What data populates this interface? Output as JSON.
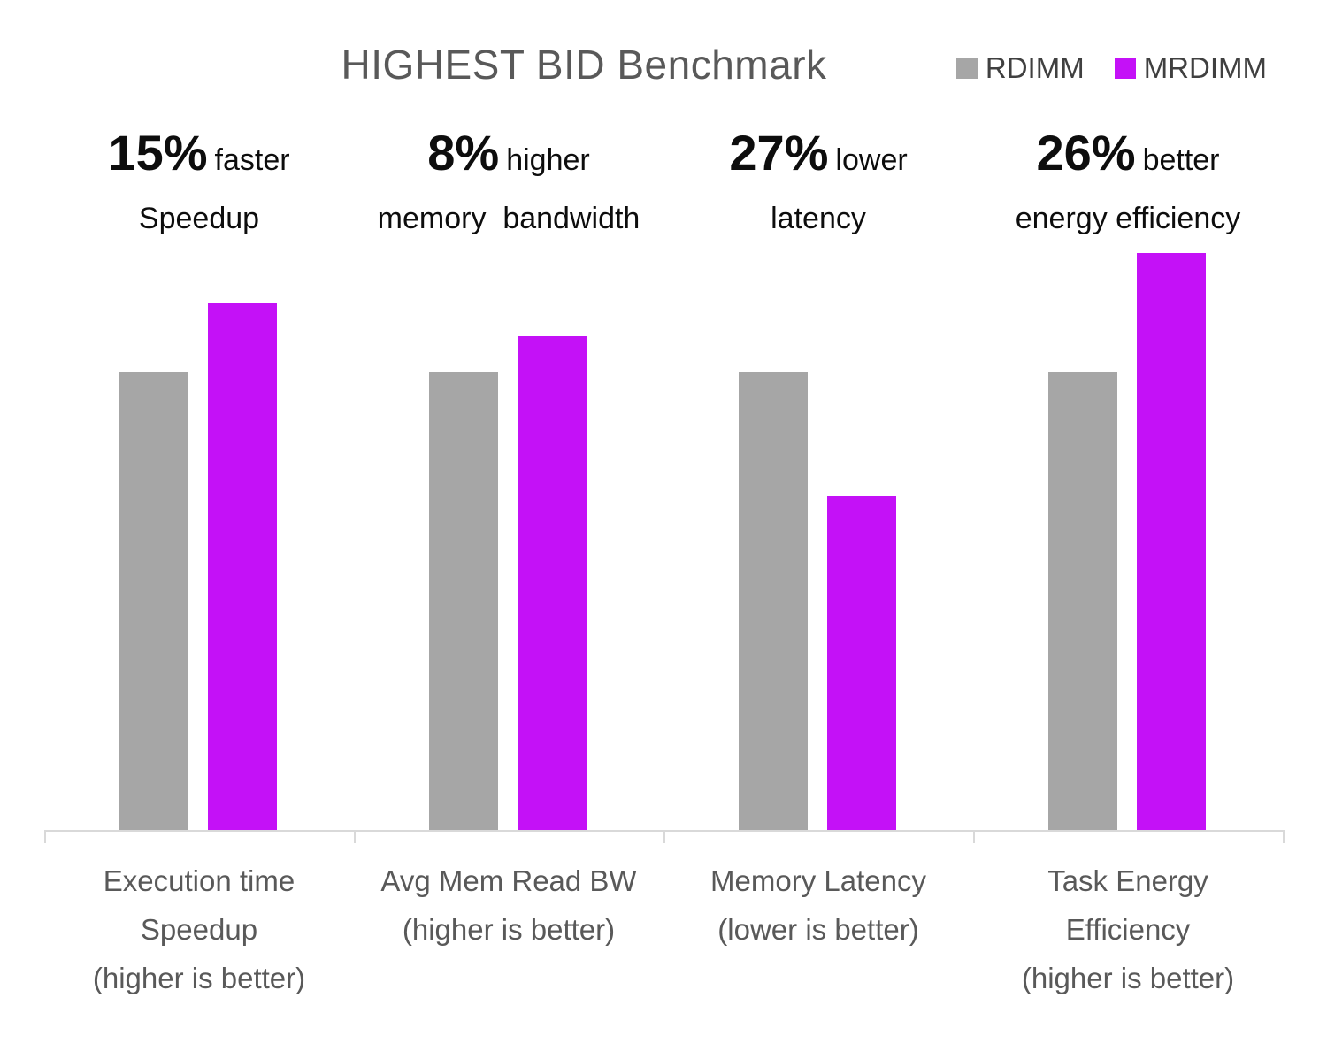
{
  "title": "HIGHEST BID Benchmark",
  "legend": [
    {
      "label": "RDIMM",
      "color": "#A6A6A6"
    },
    {
      "label": "MRDIMM",
      "color": "#C411F7"
    }
  ],
  "annotations": [
    {
      "stat": "15%",
      "qualifier": "faster",
      "detail": "Speedup"
    },
    {
      "stat": "8%",
      "qualifier": "higher",
      "detail": "memory  bandwidth"
    },
    {
      "stat": "27%",
      "qualifier": "lower",
      "detail": "latency"
    },
    {
      "stat": "26%",
      "qualifier": "better",
      "detail": "energy efficiency"
    }
  ],
  "chart_data": {
    "type": "bar",
    "title": "HIGHEST BID Benchmark",
    "categories": [
      {
        "label": "Execution time Speedup (higher is better)",
        "lines": [
          "Execution time",
          "Speedup",
          "(higher is better)"
        ]
      },
      {
        "label": "Avg Mem Read BW (higher is better)",
        "lines": [
          "Avg Mem Read BW",
          "(higher is better)"
        ]
      },
      {
        "label": "Memory Latency (lower is better)",
        "lines": [
          "Memory Latency",
          "(lower is better)"
        ]
      },
      {
        "label": "Task Energy Efficiency (higher is better)",
        "lines": [
          "Task Energy",
          "Efficiency",
          "(higher is better)"
        ]
      }
    ],
    "series": [
      {
        "name": "RDIMM",
        "color": "#A6A6A6",
        "values": [
          1.0,
          1.0,
          1.0,
          1.0
        ]
      },
      {
        "name": "MRDIMM",
        "color": "#C411F7",
        "values": [
          1.15,
          1.08,
          0.73,
          1.26
        ]
      }
    ],
    "value_basis": "normalized to RDIMM = 1.0; deltas shown as 15% faster, 8% higher, 27% lower, 26% better",
    "ylim": [
      0,
      1.43
    ],
    "grid": false,
    "y_axis_visible": false,
    "legend_position": "top-right"
  }
}
